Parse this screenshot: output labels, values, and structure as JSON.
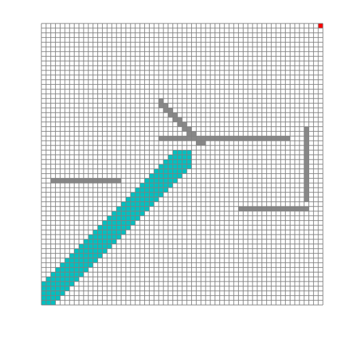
{
  "grid": {
    "rows": 60,
    "cols": 60,
    "line_color": "#808080",
    "background": "#ffffff"
  },
  "colors": {
    "wall": "#888888",
    "trail": "#00c0c0",
    "goal": "#ff0000"
  },
  "goal": [
    59,
    0
  ],
  "walls": [
    {
      "cells": [
        [
          25,
          24
        ],
        [
          26,
          24
        ],
        [
          27,
          24
        ],
        [
          28,
          24
        ],
        [
          29,
          24
        ],
        [
          30,
          24
        ],
        [
          31,
          24
        ],
        [
          32,
          24
        ],
        [
          33,
          24
        ],
        [
          34,
          24
        ],
        [
          35,
          24
        ],
        [
          36,
          24
        ],
        [
          37,
          24
        ],
        [
          38,
          24
        ],
        [
          39,
          24
        ],
        [
          40,
          24
        ],
        [
          41,
          24
        ],
        [
          42,
          24
        ],
        [
          43,
          24
        ],
        [
          44,
          24
        ],
        [
          45,
          24
        ],
        [
          46,
          24
        ],
        [
          47,
          24
        ],
        [
          48,
          24
        ],
        [
          49,
          24
        ],
        [
          50,
          24
        ],
        [
          51,
          24
        ],
        [
          52,
          24
        ]
      ]
    },
    {
      "cells": [
        [
          2,
          33
        ],
        [
          3,
          33
        ],
        [
          4,
          33
        ],
        [
          5,
          33
        ],
        [
          6,
          33
        ],
        [
          7,
          33
        ],
        [
          8,
          33
        ],
        [
          9,
          33
        ],
        [
          10,
          33
        ],
        [
          11,
          33
        ],
        [
          12,
          33
        ],
        [
          13,
          33
        ],
        [
          14,
          33
        ],
        [
          15,
          33
        ],
        [
          16,
          33
        ]
      ]
    },
    {
      "cells": [
        [
          56,
          22
        ],
        [
          56,
          23
        ],
        [
          56,
          24
        ],
        [
          56,
          25
        ],
        [
          56,
          26
        ],
        [
          56,
          27
        ],
        [
          56,
          28
        ],
        [
          56,
          29
        ],
        [
          56,
          30
        ],
        [
          56,
          31
        ],
        [
          56,
          32
        ],
        [
          56,
          33
        ],
        [
          56,
          34
        ],
        [
          56,
          35
        ],
        [
          56,
          36
        ],
        [
          56,
          37
        ]
      ]
    },
    {
      "cells": [
        [
          42,
          39
        ],
        [
          43,
          39
        ],
        [
          44,
          39
        ],
        [
          45,
          39
        ],
        [
          46,
          39
        ],
        [
          47,
          39
        ],
        [
          48,
          39
        ],
        [
          49,
          39
        ],
        [
          50,
          39
        ],
        [
          51,
          39
        ],
        [
          52,
          39
        ],
        [
          53,
          39
        ],
        [
          54,
          39
        ],
        [
          55,
          39
        ],
        [
          56,
          39
        ]
      ]
    },
    {
      "cells": [
        [
          25,
          16
        ],
        [
          25,
          17
        ],
        [
          26,
          17
        ],
        [
          26,
          18
        ],
        [
          27,
          18
        ],
        [
          27,
          19
        ],
        [
          28,
          19
        ],
        [
          28,
          20
        ],
        [
          29,
          20
        ],
        [
          29,
          21
        ],
        [
          30,
          21
        ],
        [
          30,
          22
        ],
        [
          31,
          22
        ],
        [
          31,
          23
        ],
        [
          32,
          23
        ],
        [
          32,
          24
        ],
        [
          33,
          24
        ],
        [
          33,
          25
        ],
        [
          34,
          25
        ]
      ]
    }
  ],
  "trail_path": [
    [
      0,
      58
    ],
    [
      1,
      57
    ],
    [
      2,
      56
    ],
    [
      3,
      55
    ],
    [
      4,
      54
    ],
    [
      5,
      53
    ],
    [
      6,
      52
    ],
    [
      7,
      51
    ],
    [
      8,
      50
    ],
    [
      9,
      49
    ],
    [
      10,
      48
    ],
    [
      11,
      47
    ],
    [
      12,
      46
    ],
    [
      13,
      45
    ],
    [
      14,
      44
    ],
    [
      15,
      43
    ],
    [
      16,
      42
    ],
    [
      17,
      41
    ],
    [
      18,
      40
    ],
    [
      19,
      39
    ],
    [
      20,
      38
    ],
    [
      21,
      37
    ],
    [
      22,
      36
    ],
    [
      23,
      35
    ],
    [
      24,
      34
    ],
    [
      25,
      33
    ],
    [
      26,
      32
    ],
    [
      27,
      31
    ],
    [
      28,
      30
    ],
    [
      29,
      29
    ],
    [
      30,
      28
    ],
    [
      31,
      27
    ],
    [
      32,
      26
    ],
    [
      33,
      25
    ],
    [
      34,
      24
    ],
    [
      35,
      23
    ],
    [
      36,
      22
    ],
    [
      37,
      21
    ],
    [
      38,
      20
    ],
    [
      39,
      19
    ],
    [
      40,
      18
    ],
    [
      41,
      17
    ],
    [
      42,
      16
    ],
    [
      43,
      15
    ],
    [
      44,
      14
    ],
    [
      45,
      13
    ],
    [
      46,
      12
    ],
    [
      47,
      11
    ],
    [
      48,
      10
    ],
    [
      49,
      9
    ],
    [
      50,
      8
    ],
    [
      51,
      7
    ],
    [
      52,
      6
    ],
    [
      53,
      5
    ],
    [
      54,
      4
    ],
    [
      55,
      3
    ],
    [
      56,
      2
    ],
    [
      57,
      1
    ],
    [
      58,
      0
    ]
  ],
  "trail_visible_until": [
    29,
    19
  ]
}
